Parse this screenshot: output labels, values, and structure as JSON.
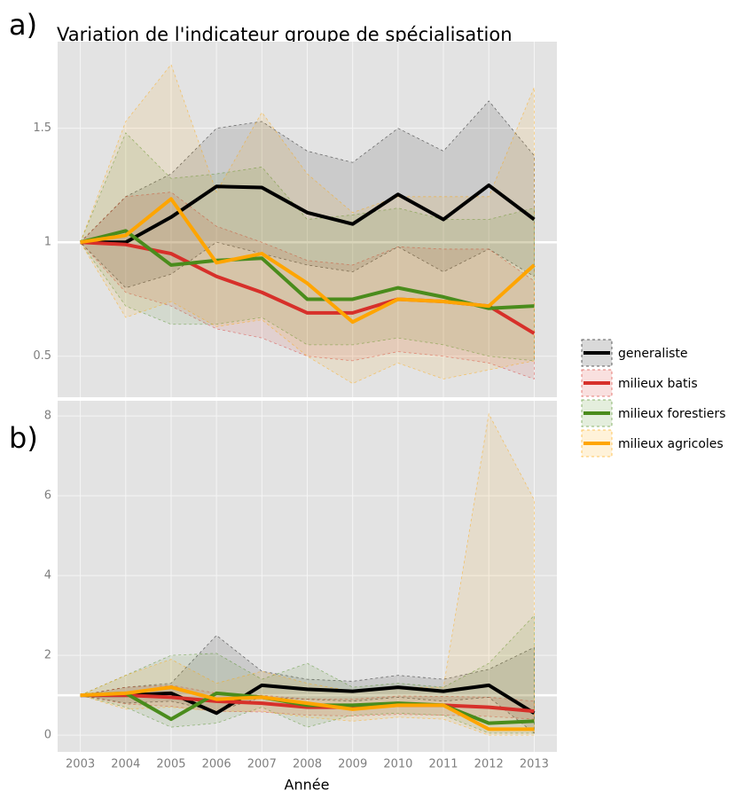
{
  "chart_data": [
    {
      "type": "line",
      "label": "a)",
      "title": "Variation de l'indicateur groupe de spécialisation",
      "x": [
        2003,
        2004,
        2005,
        2006,
        2007,
        2008,
        2009,
        2010,
        2011,
        2012,
        2013
      ],
      "xlim": [
        2002.5,
        2013.5
      ],
      "xticks": [
        2003,
        2004,
        2005,
        2006,
        2007,
        2008,
        2009,
        2010,
        2011,
        2012,
        2013
      ],
      "ylim": [
        0.32,
        1.88
      ],
      "yticks": [
        0.5,
        1.0,
        1.5
      ],
      "grid": true,
      "hline": 1,
      "legend": "right",
      "series": [
        {
          "name": "generaliste",
          "color": "#000000",
          "values": [
            1.0,
            1.0,
            1.11,
            1.245,
            1.24,
            1.13,
            1.08,
            1.21,
            1.1,
            1.25,
            1.1
          ],
          "lower": [
            1.0,
            0.8,
            0.86,
            1.0,
            0.95,
            0.9,
            0.87,
            0.98,
            0.87,
            0.97,
            0.85
          ],
          "upper": [
            1.0,
            1.2,
            1.3,
            1.5,
            1.53,
            1.4,
            1.35,
            1.5,
            1.4,
            1.62,
            1.38
          ]
        },
        {
          "name": "milieux batis",
          "color": "#d7302a",
          "values": [
            1.0,
            0.99,
            0.95,
            0.85,
            0.78,
            0.69,
            0.69,
            0.75,
            0.74,
            0.72,
            0.6
          ],
          "lower": [
            1.0,
            0.78,
            0.72,
            0.62,
            0.58,
            0.5,
            0.48,
            0.52,
            0.5,
            0.47,
            0.4
          ],
          "upper": [
            1.0,
            1.2,
            1.22,
            1.07,
            1.0,
            0.92,
            0.9,
            0.98,
            0.97,
            0.97,
            0.83
          ]
        },
        {
          "name": "milieux forestiers",
          "color": "#4a8c1c",
          "values": [
            1.0,
            1.05,
            0.9,
            0.92,
            0.93,
            0.75,
            0.75,
            0.8,
            0.76,
            0.71,
            0.72
          ],
          "lower": [
            1.0,
            0.72,
            0.64,
            0.64,
            0.67,
            0.55,
            0.55,
            0.58,
            0.55,
            0.5,
            0.48
          ],
          "upper": [
            1.0,
            1.48,
            1.28,
            1.3,
            1.33,
            1.1,
            1.12,
            1.15,
            1.1,
            1.1,
            1.15
          ]
        },
        {
          "name": "milieux agricoles",
          "color": "#ffa500",
          "values": [
            1.0,
            1.03,
            1.19,
            0.91,
            0.95,
            0.82,
            0.65,
            0.75,
            0.74,
            0.72,
            0.9
          ],
          "lower": [
            1.0,
            0.67,
            0.74,
            0.63,
            0.66,
            0.5,
            0.38,
            0.47,
            0.4,
            0.44,
            0.48
          ],
          "upper": [
            1.0,
            1.53,
            1.78,
            1.22,
            1.57,
            1.3,
            1.13,
            1.2,
            1.2,
            1.2,
            1.68
          ]
        }
      ]
    },
    {
      "type": "line",
      "label": "b)",
      "x_label": "Année",
      "x": [
        2003,
        2004,
        2005,
        2006,
        2007,
        2008,
        2009,
        2010,
        2011,
        2012,
        2013
      ],
      "xlim": [
        2002.5,
        2013.5
      ],
      "xticks": [
        2003,
        2004,
        2005,
        2006,
        2007,
        2008,
        2009,
        2010,
        2011,
        2012,
        2013
      ],
      "ylim": [
        -0.42,
        8.38
      ],
      "yticks": [
        0,
        2,
        4,
        6,
        8
      ],
      "grid": true,
      "hline": 1,
      "series": [
        {
          "color": "#000000",
          "values": [
            1.0,
            1.0,
            1.05,
            0.55,
            1.25,
            1.15,
            1.1,
            1.2,
            1.1,
            1.25,
            0.55
          ],
          "lower": [
            1.0,
            0.8,
            0.85,
            0.6,
            0.95,
            0.9,
            0.85,
            0.95,
            0.85,
            0.95,
            0.05
          ],
          "upper": [
            1.0,
            1.2,
            1.3,
            2.5,
            1.6,
            1.4,
            1.35,
            1.5,
            1.4,
            1.65,
            2.2
          ]
        },
        {
          "color": "#d7302a",
          "values": [
            1.0,
            1.0,
            0.95,
            0.85,
            0.8,
            0.7,
            0.7,
            0.75,
            0.75,
            0.7,
            0.6
          ],
          "lower": [
            1.0,
            0.78,
            0.72,
            0.6,
            0.58,
            0.5,
            0.48,
            0.52,
            0.5,
            0.47,
            0.4
          ],
          "upper": [
            1.0,
            1.2,
            1.25,
            1.05,
            1.0,
            0.9,
            0.9,
            0.98,
            0.97,
            0.95,
            0.85
          ]
        },
        {
          "color": "#4a8c1c",
          "values": [
            1.0,
            1.05,
            0.4,
            1.05,
            0.95,
            0.75,
            0.75,
            0.8,
            0.75,
            0.3,
            0.35
          ],
          "lower": [
            1.0,
            0.7,
            0.2,
            0.3,
            0.7,
            0.2,
            0.5,
            0.55,
            0.5,
            0.05,
            0.05
          ],
          "upper": [
            1.0,
            1.5,
            2.0,
            2.05,
            1.4,
            1.8,
            1.2,
            1.3,
            1.2,
            1.8,
            3.0
          ]
        },
        {
          "color": "#ffa500",
          "values": [
            1.0,
            1.05,
            1.2,
            0.9,
            0.95,
            0.8,
            0.65,
            0.75,
            0.75,
            0.15,
            0.15
          ],
          "lower": [
            1.0,
            0.65,
            0.7,
            0.6,
            0.6,
            0.45,
            0.35,
            0.45,
            0.4,
            0.0,
            0.0
          ],
          "upper": [
            1.0,
            1.5,
            1.9,
            1.3,
            1.6,
            1.3,
            1.1,
            1.2,
            1.2,
            8.05,
            5.9
          ]
        }
      ]
    }
  ]
}
